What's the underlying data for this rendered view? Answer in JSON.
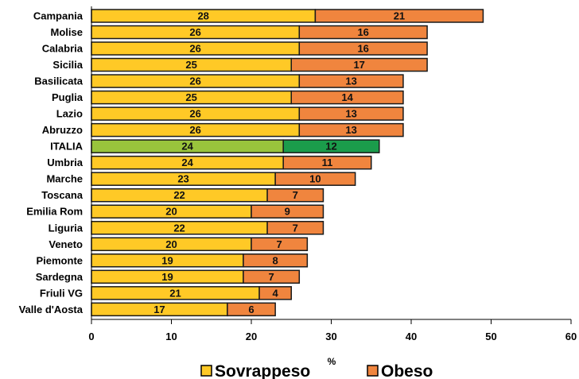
{
  "chart_data": {
    "type": "bar",
    "orientation": "horizontal",
    "stacked": true,
    "categories": [
      "Campania",
      "Molise",
      "Calabria",
      "Sicilia",
      "Basilicata",
      "Puglia",
      "Lazio",
      "Abruzzo",
      "ITALIA",
      "Umbria",
      "Marche",
      "Toscana",
      "Emilia Rom",
      "Liguria",
      "Veneto",
      "Piemonte",
      "Sardegna",
      "Friuli VG",
      "Valle d'Aosta"
    ],
    "series": [
      {
        "name": "Sovrappeso",
        "values": [
          28,
          26,
          26,
          25,
          26,
          25,
          26,
          26,
          24,
          24,
          23,
          22,
          20,
          22,
          20,
          19,
          19,
          21,
          17
        ],
        "color": "#ffc926"
      },
      {
        "name": "Obeso",
        "values": [
          21,
          16,
          16,
          17,
          13,
          14,
          13,
          13,
          12,
          11,
          10,
          7,
          9,
          7,
          7,
          8,
          7,
          4,
          6
        ],
        "color": "#f0853e"
      }
    ],
    "highlight": {
      "category": "ITALIA",
      "colors": [
        "#99c43c",
        "#1b9c4b"
      ]
    },
    "xlabel": "%",
    "xlim": [
      0,
      60
    ],
    "xticks": [
      0,
      10,
      20,
      30,
      40,
      50,
      60
    ],
    "grid": false,
    "legend_position": "bottom"
  }
}
